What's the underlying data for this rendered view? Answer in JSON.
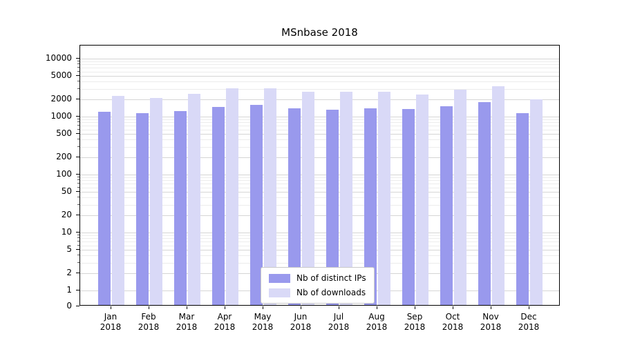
{
  "chart_data": {
    "type": "bar",
    "title": "MSnbase 2018",
    "months": [
      "Jan",
      "Feb",
      "Mar",
      "Apr",
      "May",
      "Jun",
      "Jul",
      "Aug",
      "Sep",
      "Oct",
      "Nov",
      "Dec"
    ],
    "year": "2018",
    "series": [
      {
        "key": "ips",
        "name": "Nb of distinct IPs",
        "color": "#9999ed",
        "values": [
          1200,
          1150,
          1250,
          1450,
          1600,
          1400,
          1300,
          1400,
          1350,
          1500,
          1800,
          1150
        ]
      },
      {
        "key": "downloads",
        "name": "Nb of downloads",
        "color": "#d9d9f7",
        "values": [
          2250,
          2100,
          2450,
          3100,
          3100,
          2650,
          2700,
          2650,
          2400,
          2950,
          3300,
          2000
        ]
      }
    ],
    "y_axis": {
      "scale": "symlog",
      "ticks": [
        0,
        1,
        2,
        5,
        10,
        20,
        50,
        100,
        200,
        500,
        1000,
        2000,
        5000,
        10000
      ],
      "minor_ticks": [
        3,
        4,
        6,
        7,
        8,
        9,
        30,
        40,
        60,
        70,
        80,
        90,
        300,
        400,
        600,
        700,
        800,
        900,
        3000,
        4000,
        6000,
        7000,
        8000,
        9000
      ]
    },
    "legend": {
      "position": "lower center"
    },
    "grid": true
  }
}
